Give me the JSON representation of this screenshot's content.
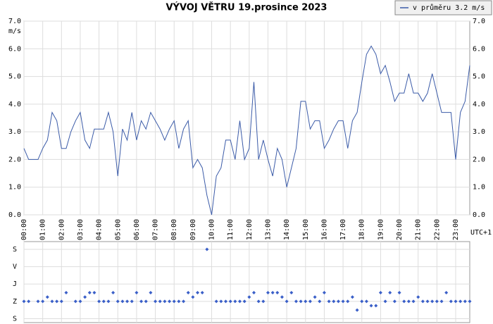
{
  "chart_data": [
    {
      "type": "line",
      "title": "VÝVOJ VĚTRU  19.prosince 2023",
      "y_label": "m/s",
      "x_note": "UTC+1",
      "x": [
        0,
        0.25,
        0.5,
        0.75,
        1,
        1.25,
        1.5,
        1.75,
        2,
        2.25,
        2.5,
        2.75,
        3,
        3.25,
        3.5,
        3.75,
        4,
        4.25,
        4.5,
        4.75,
        5,
        5.25,
        5.5,
        5.75,
        6,
        6.25,
        6.5,
        6.75,
        7,
        7.25,
        7.5,
        7.75,
        8,
        8.25,
        8.5,
        8.75,
        9,
        9.25,
        9.5,
        9.75,
        10,
        10.25,
        10.5,
        10.75,
        11,
        11.25,
        11.5,
        11.75,
        12,
        12.25,
        12.5,
        12.75,
        13,
        13.25,
        13.5,
        13.75,
        14,
        14.25,
        14.5,
        14.75,
        15,
        15.25,
        15.5,
        15.75,
        16,
        16.25,
        16.5,
        16.75,
        17,
        17.25,
        17.5,
        17.75,
        18,
        18.25,
        18.5,
        18.75,
        19,
        19.25,
        19.5,
        19.75,
        20,
        20.25,
        20.5,
        20.75,
        21,
        21.25,
        21.5,
        21.75,
        22,
        22.25,
        22.5,
        22.75,
        23,
        23.25,
        23.5,
        23.75
      ],
      "series": [
        {
          "name": "v průměru 3.2 m/s",
          "color": "#3b5ba8",
          "values": [
            2.4,
            2.0,
            2.0,
            2.0,
            2.4,
            2.7,
            3.7,
            3.4,
            2.4,
            2.4,
            3.0,
            3.4,
            3.7,
            2.7,
            2.4,
            3.1,
            3.1,
            3.1,
            3.7,
            3.0,
            1.4,
            3.1,
            2.7,
            3.7,
            2.7,
            3.4,
            3.1,
            3.7,
            3.4,
            3.1,
            2.7,
            3.1,
            3.4,
            2.4,
            3.1,
            3.4,
            1.7,
            2.0,
            1.7,
            0.7,
            0.0,
            1.4,
            1.7,
            2.7,
            2.7,
            2.0,
            3.4,
            2.0,
            2.4,
            4.8,
            2.0,
            2.7,
            2.0,
            1.4,
            2.4,
            2.0,
            1.0,
            1.7,
            2.4,
            4.1,
            4.1,
            3.1,
            3.4,
            3.4,
            2.4,
            2.7,
            3.1,
            3.4,
            3.4,
            2.4,
            3.4,
            3.7,
            4.8,
            5.8,
            6.1,
            5.8,
            5.1,
            5.4,
            4.8,
            4.1,
            4.4,
            4.4,
            5.1,
            4.4,
            4.4,
            4.1,
            4.4,
            5.1,
            4.4,
            3.7,
            3.7,
            3.7,
            2.0,
            3.7,
            4.1,
            5.4
          ]
        }
      ],
      "xlim": [
        0,
        23.75
      ],
      "ylim": [
        0,
        7
      ],
      "xticks": [
        {
          "value": 0,
          "label": "00:00"
        },
        {
          "value": 1,
          "label": "01:00"
        },
        {
          "value": 2,
          "label": "02:00"
        },
        {
          "value": 3,
          "label": "03:00"
        },
        {
          "value": 4,
          "label": "04:00"
        },
        {
          "value": 5,
          "label": "05:00"
        },
        {
          "value": 6,
          "label": "06:00"
        },
        {
          "value": 7,
          "label": "07:00"
        },
        {
          "value": 8,
          "label": "08:00"
        },
        {
          "value": 9,
          "label": "09:00"
        },
        {
          "value": 10,
          "label": "10:00"
        },
        {
          "value": 11,
          "label": "11:00"
        },
        {
          "value": 12,
          "label": "12:00"
        },
        {
          "value": 13,
          "label": "13:00"
        },
        {
          "value": 14,
          "label": "14:00"
        },
        {
          "value": 15,
          "label": "15:00"
        },
        {
          "value": 16,
          "label": "16:00"
        },
        {
          "value": 17,
          "label": "17:00"
        },
        {
          "value": 18,
          "label": "18:00"
        },
        {
          "value": 19,
          "label": "19:00"
        },
        {
          "value": 20,
          "label": "20:00"
        },
        {
          "value": 21,
          "label": "21:00"
        },
        {
          "value": 22,
          "label": "22:00"
        },
        {
          "value": 23,
          "label": "23:00"
        }
      ],
      "yticks": [
        {
          "value": 0,
          "label": "0.0"
        },
        {
          "value": 1,
          "label": "1.0"
        },
        {
          "value": 2,
          "label": "2.0"
        },
        {
          "value": 3,
          "label": "3.0"
        },
        {
          "value": 4,
          "label": "4.0"
        },
        {
          "value": 5,
          "label": "5.0"
        },
        {
          "value": 6,
          "label": "6.0"
        },
        {
          "value": 7,
          "label": "7.0"
        }
      ],
      "grid": true,
      "legend": "top-right"
    },
    {
      "type": "scatter",
      "x": [
        0,
        0.25,
        0.5,
        0.75,
        1,
        1.25,
        1.5,
        1.75,
        2,
        2.25,
        2.5,
        2.75,
        3,
        3.25,
        3.5,
        3.75,
        4,
        4.25,
        4.5,
        4.75,
        5,
        5.25,
        5.5,
        5.75,
        6,
        6.25,
        6.5,
        6.75,
        7,
        7.25,
        7.5,
        7.75,
        8,
        8.25,
        8.5,
        8.75,
        9,
        9.25,
        9.5,
        9.75,
        10,
        10.25,
        10.5,
        10.75,
        11,
        11.25,
        11.5,
        11.75,
        12,
        12.25,
        12.5,
        12.75,
        13,
        13.25,
        13.5,
        13.75,
        14,
        14.25,
        14.5,
        14.75,
        15,
        15.25,
        15.5,
        15.75,
        16,
        16.25,
        16.5,
        16.75,
        17,
        17.25,
        17.5,
        17.75,
        18,
        18.25,
        18.5,
        18.75,
        19,
        19.25,
        19.5,
        19.75,
        20,
        20.25,
        20.5,
        20.75,
        21,
        21.25,
        21.5,
        21.75,
        22,
        22.25,
        22.5,
        22.75,
        23,
        23.25,
        23.5,
        23.75
      ],
      "series": [
        {
          "color": "#3a5fc8",
          "values": [
            270,
            270,
            null,
            270,
            270,
            247.5,
            270,
            270,
            270,
            225,
            null,
            270,
            270,
            247.5,
            225,
            225,
            270,
            270,
            270,
            225,
            270,
            270,
            270,
            270,
            225,
            270,
            270,
            225,
            270,
            270,
            270,
            270,
            270,
            270,
            270,
            225,
            247.5,
            225,
            225,
            0,
            null,
            270,
            270,
            270,
            270,
            270,
            270,
            270,
            247.5,
            225,
            270,
            270,
            225,
            225,
            225,
            247.5,
            270,
            225,
            270,
            270,
            270,
            270,
            247.5,
            270,
            225,
            270,
            270,
            270,
            270,
            270,
            247.5,
            315,
            270,
            270,
            292.5,
            292.5,
            225,
            270,
            225,
            270,
            225,
            270,
            270,
            270,
            247.5,
            270,
            270,
            270,
            270,
            270,
            225,
            270,
            270,
            270,
            270,
            270
          ]
        }
      ],
      "xlim": [
        0,
        23.75
      ],
      "ylim": [
        380,
        -40
      ],
      "yticks": [
        {
          "value": 0,
          "label": "S"
        },
        {
          "value": 90,
          "label": "V"
        },
        {
          "value": 180,
          "label": "J"
        },
        {
          "value": 270,
          "label": "Z"
        },
        {
          "value": 360,
          "label": "S"
        }
      ],
      "grid": true
    }
  ]
}
